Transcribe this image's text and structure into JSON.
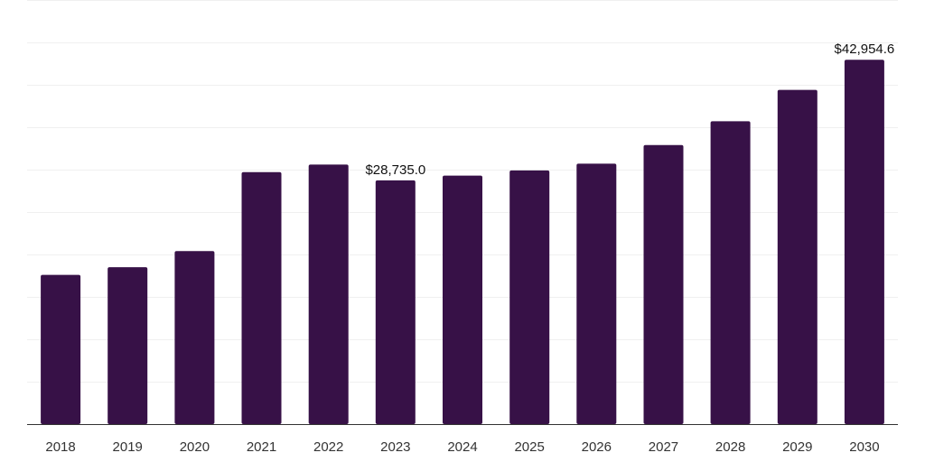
{
  "chart_data": {
    "type": "bar",
    "categories": [
      "2018",
      "2019",
      "2020",
      "2021",
      "2022",
      "2023",
      "2024",
      "2025",
      "2026",
      "2027",
      "2028",
      "2029",
      "2030"
    ],
    "values": [
      17600,
      18500,
      20400,
      29700,
      30600,
      28735.0,
      29300,
      29900,
      30700,
      32900,
      35700,
      39400,
      42954.6
    ],
    "data_labels": {
      "2023": "$28,735.0",
      "2030": "$42,954.6"
    },
    "title": "",
    "xlabel": "",
    "ylabel": "",
    "ylim": [
      0,
      50000
    ],
    "grid": true,
    "gridline_step": 5000,
    "legend": "none",
    "bar_color": "#371147"
  }
}
